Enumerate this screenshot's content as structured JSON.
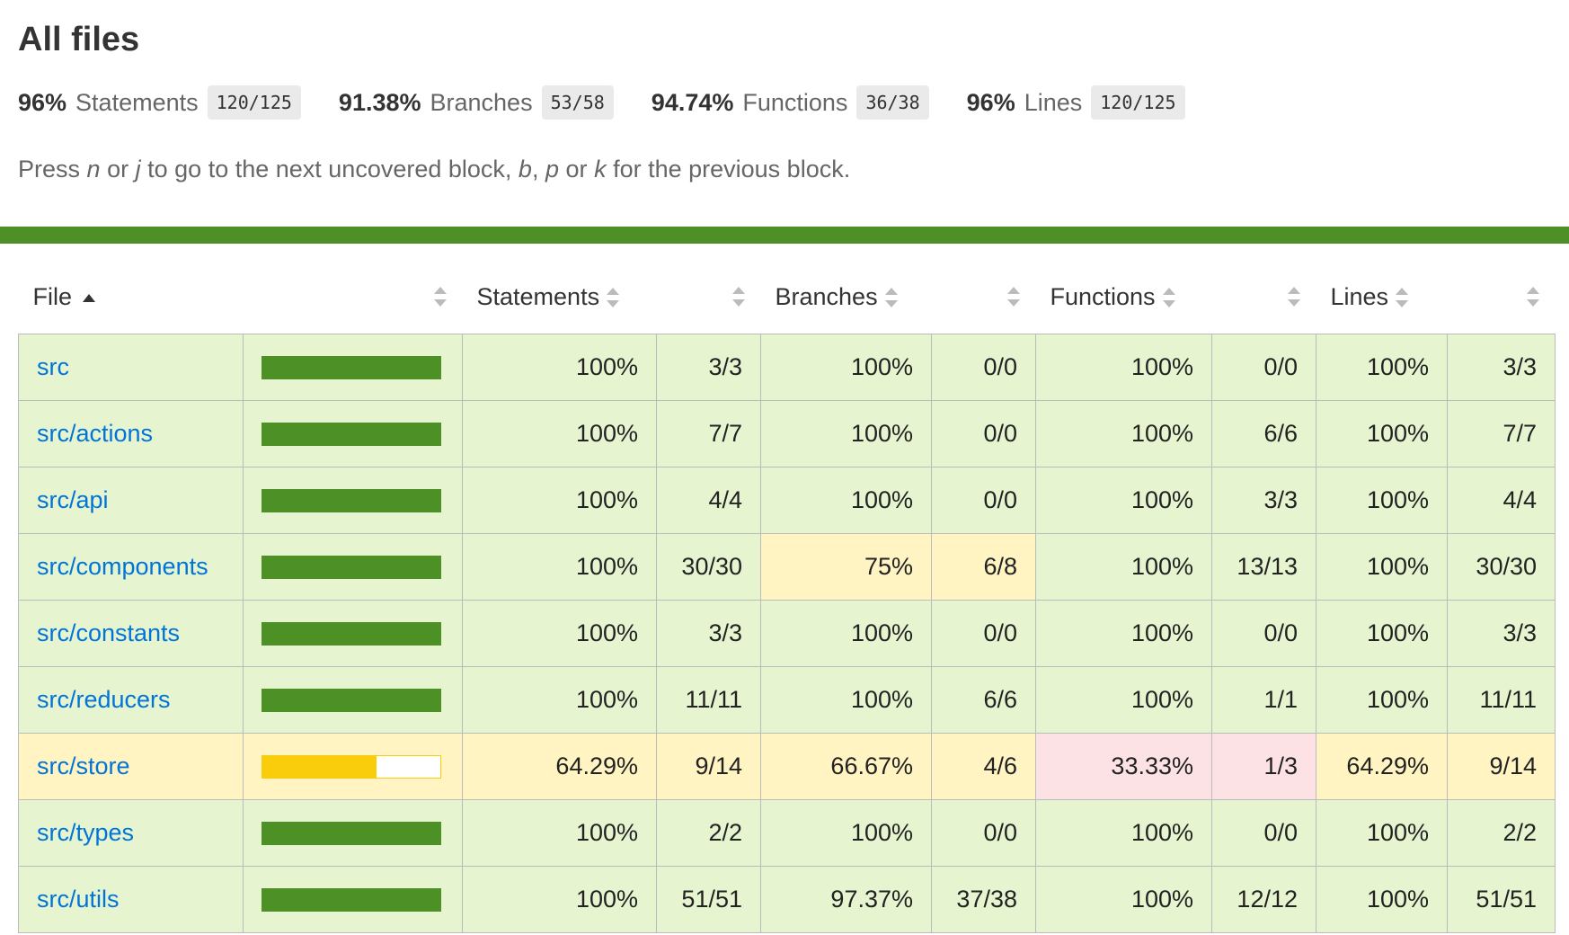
{
  "page": {
    "title": "All files",
    "hint": {
      "press": "Press",
      "key1": "n",
      "or1": "or",
      "key2": "j",
      "mid": "to go to the next uncovered block,",
      "key3": "b",
      "comma": ",",
      "key4": "p",
      "or2": "or",
      "key5": "k",
      "end": "for the previous block."
    }
  },
  "summary": [
    {
      "pct": "96%",
      "label": "Statements",
      "fraction": "120/125"
    },
    {
      "pct": "91.38%",
      "label": "Branches",
      "fraction": "53/58"
    },
    {
      "pct": "94.74%",
      "label": "Functions",
      "fraction": "36/38"
    },
    {
      "pct": "96%",
      "label": "Lines",
      "fraction": "120/125"
    }
  ],
  "table": {
    "headers": {
      "file": "File",
      "statements": "Statements",
      "branches": "Branches",
      "functions": "Functions",
      "lines": "Lines"
    },
    "rows": [
      {
        "file": "src",
        "level": "high",
        "coverage": 1.0,
        "stmt_pct": "100%",
        "stmt_frac": "3/3",
        "stmt_level": "high",
        "br_pct": "100%",
        "br_frac": "0/0",
        "br_level": "high",
        "fn_pct": "100%",
        "fn_frac": "0/0",
        "fn_level": "high",
        "ln_pct": "100%",
        "ln_frac": "3/3",
        "ln_level": "high"
      },
      {
        "file": "src/actions",
        "level": "high",
        "coverage": 1.0,
        "stmt_pct": "100%",
        "stmt_frac": "7/7",
        "stmt_level": "high",
        "br_pct": "100%",
        "br_frac": "0/0",
        "br_level": "high",
        "fn_pct": "100%",
        "fn_frac": "6/6",
        "fn_level": "high",
        "ln_pct": "100%",
        "ln_frac": "7/7",
        "ln_level": "high"
      },
      {
        "file": "src/api",
        "level": "high",
        "coverage": 1.0,
        "stmt_pct": "100%",
        "stmt_frac": "4/4",
        "stmt_level": "high",
        "br_pct": "100%",
        "br_frac": "0/0",
        "br_level": "high",
        "fn_pct": "100%",
        "fn_frac": "3/3",
        "fn_level": "high",
        "ln_pct": "100%",
        "ln_frac": "4/4",
        "ln_level": "high"
      },
      {
        "file": "src/components",
        "level": "high",
        "coverage": 1.0,
        "stmt_pct": "100%",
        "stmt_frac": "30/30",
        "stmt_level": "high",
        "br_pct": "75%",
        "br_frac": "6/8",
        "br_level": "medium",
        "fn_pct": "100%",
        "fn_frac": "13/13",
        "fn_level": "high",
        "ln_pct": "100%",
        "ln_frac": "30/30",
        "ln_level": "high"
      },
      {
        "file": "src/constants",
        "level": "high",
        "coverage": 1.0,
        "stmt_pct": "100%",
        "stmt_frac": "3/3",
        "stmt_level": "high",
        "br_pct": "100%",
        "br_frac": "0/0",
        "br_level": "high",
        "fn_pct": "100%",
        "fn_frac": "0/0",
        "fn_level": "high",
        "ln_pct": "100%",
        "ln_frac": "3/3",
        "ln_level": "high"
      },
      {
        "file": "src/reducers",
        "level": "high",
        "coverage": 1.0,
        "stmt_pct": "100%",
        "stmt_frac": "11/11",
        "stmt_level": "high",
        "br_pct": "100%",
        "br_frac": "6/6",
        "br_level": "high",
        "fn_pct": "100%",
        "fn_frac": "1/1",
        "fn_level": "high",
        "ln_pct": "100%",
        "ln_frac": "11/11",
        "ln_level": "high"
      },
      {
        "file": "src/store",
        "level": "medium",
        "coverage": 0.6429,
        "stmt_pct": "64.29%",
        "stmt_frac": "9/14",
        "stmt_level": "medium",
        "br_pct": "66.67%",
        "br_frac": "4/6",
        "br_level": "medium",
        "fn_pct": "33.33%",
        "fn_frac": "1/3",
        "fn_level": "low",
        "ln_pct": "64.29%",
        "ln_frac": "9/14",
        "ln_level": "medium"
      },
      {
        "file": "src/types",
        "level": "high",
        "coverage": 1.0,
        "stmt_pct": "100%",
        "stmt_frac": "2/2",
        "stmt_level": "high",
        "br_pct": "100%",
        "br_frac": "0/0",
        "br_level": "high",
        "fn_pct": "100%",
        "fn_frac": "0/0",
        "fn_level": "high",
        "ln_pct": "100%",
        "ln_frac": "2/2",
        "ln_level": "high"
      },
      {
        "file": "src/utils",
        "level": "high",
        "coverage": 1.0,
        "stmt_pct": "100%",
        "stmt_frac": "51/51",
        "stmt_level": "high",
        "br_pct": "97.37%",
        "br_frac": "37/38",
        "br_level": "high",
        "fn_pct": "100%",
        "fn_frac": "12/12",
        "fn_level": "high",
        "ln_pct": "100%",
        "ln_frac": "51/51",
        "ln_level": "high"
      }
    ]
  },
  "colors": {
    "high_bg": "#e6f5d0",
    "medium_bg": "#fff4c2",
    "low_bg": "#fce1e5",
    "high_bar": "#4d9126",
    "medium_bar": "#f9cd0b",
    "link": "#0074d9"
  },
  "icons": {
    "sort_asc": "sort-ascending-icon",
    "sortable": "sort-icon"
  }
}
